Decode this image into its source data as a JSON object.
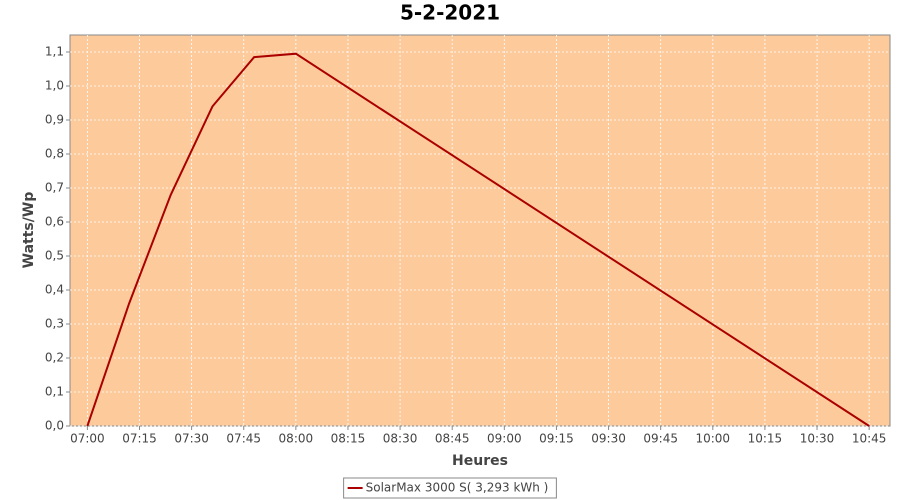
{
  "chart_data": {
    "type": "line",
    "title": "5-2-2021",
    "x_label": "Heures",
    "y_label": "Watts/Wp",
    "x": [
      "07:00",
      "07:12",
      "07:24",
      "07:36",
      "07:48",
      "08:00",
      "10:45"
    ],
    "series": [
      {
        "name": "SolarMax 3000 S( 3,293 kWh )",
        "color": "#aa0000",
        "values": [
          0,
          0.36,
          0.68,
          0.94,
          1.085,
          1.095,
          0
        ]
      }
    ],
    "xlim": [
      "06:55",
      "10:51"
    ],
    "xticks": [
      "07:00",
      "07:15",
      "07:30",
      "07:45",
      "08:00",
      "08:15",
      "08:30",
      "08:45",
      "09:00",
      "09:15",
      "09:30",
      "09:45",
      "10:00",
      "10:15",
      "10:30",
      "10:45"
    ],
    "ylim": [
      0,
      1.15
    ],
    "yticks": [
      {
        "value": 0,
        "label": "0,0"
      },
      {
        "value": 0.1,
        "label": "0,1"
      },
      {
        "value": 0.2,
        "label": "0,2"
      },
      {
        "value": 0.3,
        "label": "0,3"
      },
      {
        "value": 0.4,
        "label": "0,4"
      },
      {
        "value": 0.5,
        "label": "0,5"
      },
      {
        "value": 0.6,
        "label": "0,6"
      },
      {
        "value": 0.7,
        "label": "0,7"
      },
      {
        "value": 0.8,
        "label": "0,8"
      },
      {
        "value": 0.9,
        "label": "0,9"
      },
      {
        "value": 1.0,
        "label": "1,0"
      },
      {
        "value": 1.1,
        "label": "1,1"
      }
    ],
    "grid": true,
    "plot_background": "#fdcb9b"
  }
}
